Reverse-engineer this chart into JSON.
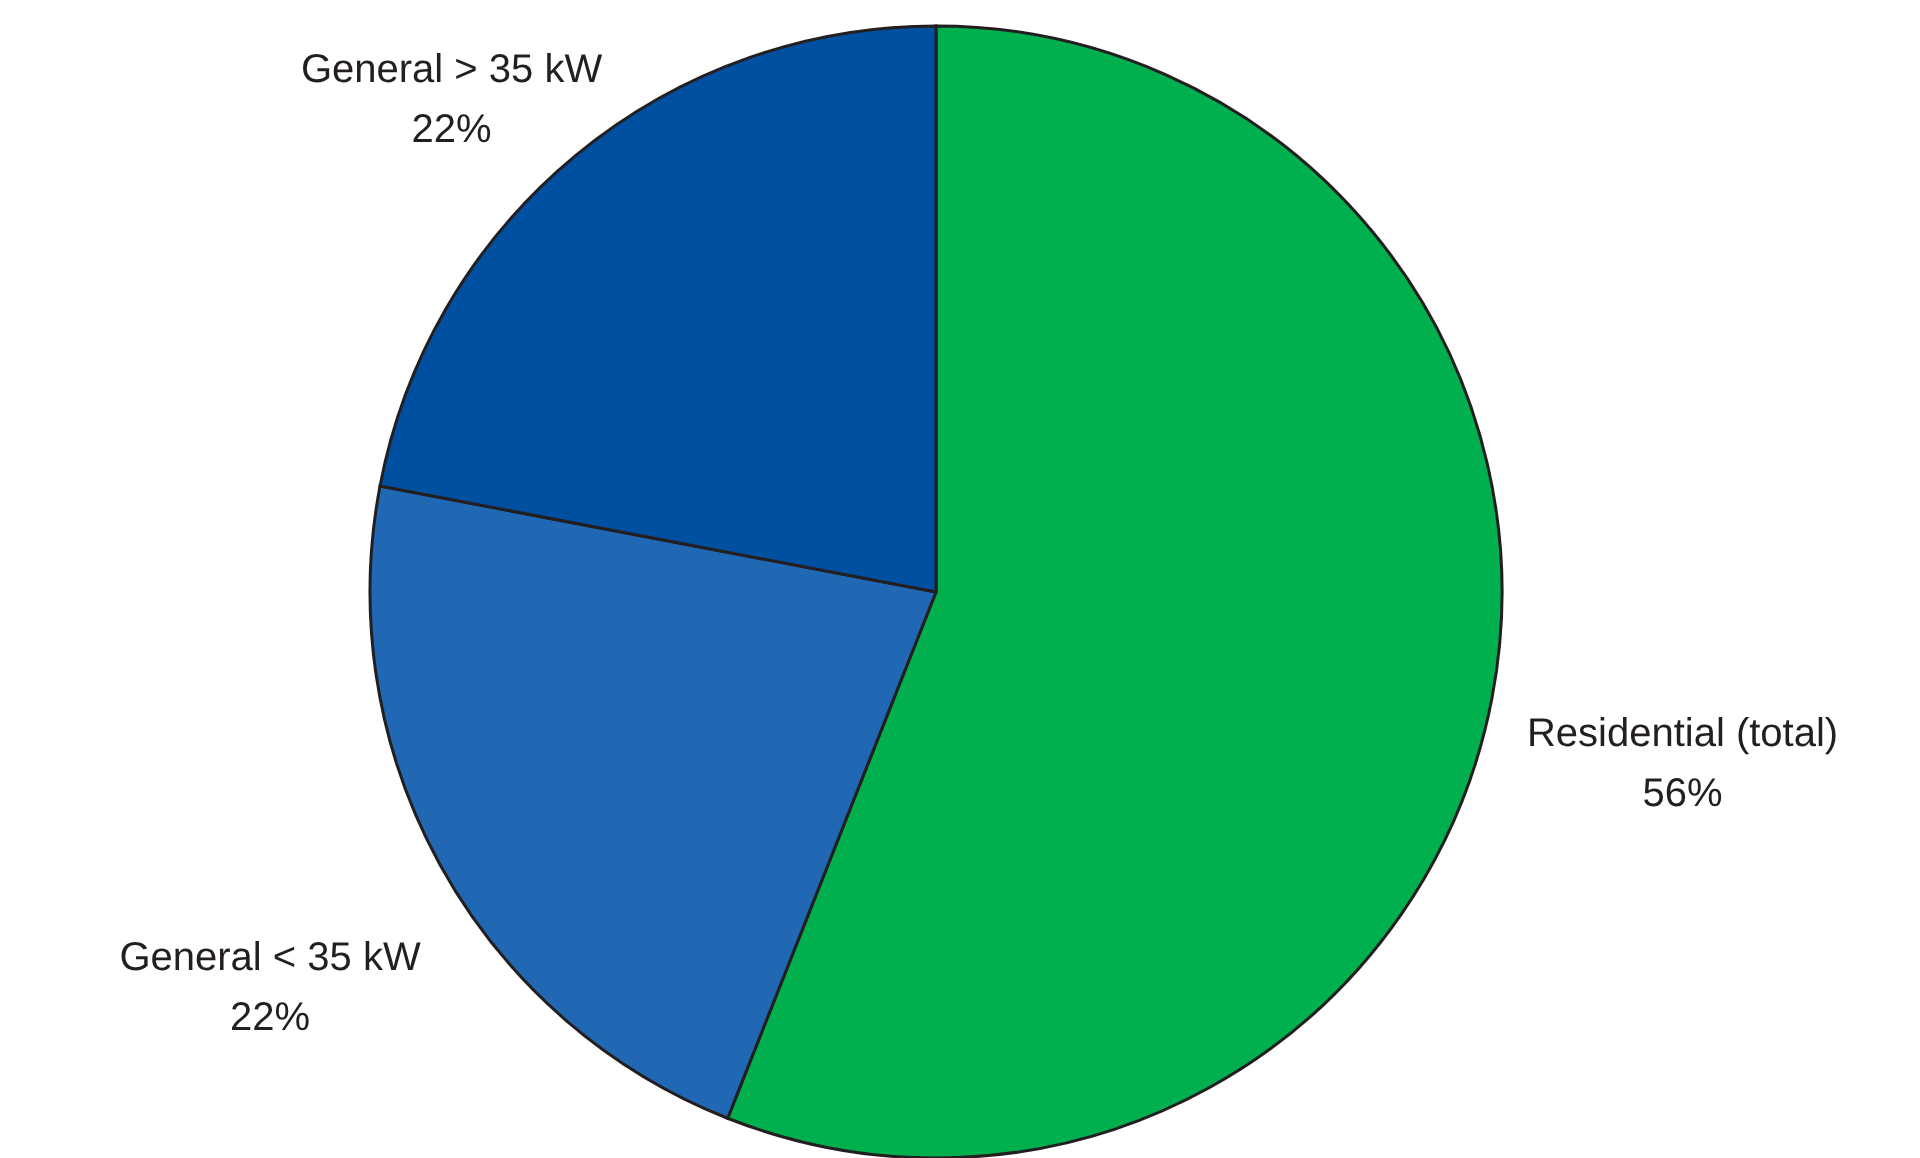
{
  "chart_data": {
    "type": "pie",
    "categories": [
      "Residential (total)",
      "General < 35 kW",
      "General > 35 kW"
    ],
    "values": [
      56,
      22,
      22
    ],
    "value_labels": [
      "56%",
      "22%",
      "22%"
    ],
    "colors": [
      "#00b04f",
      "#2168b4",
      "#0050a2"
    ]
  }
}
